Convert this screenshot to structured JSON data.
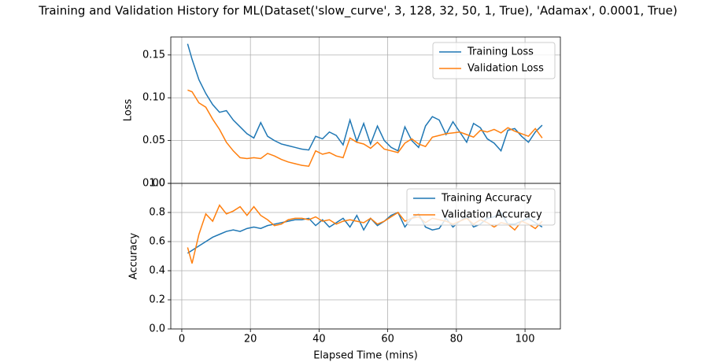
{
  "chart_data": [
    {
      "type": "line",
      "title": "Training and Validation History for ML(Dataset('slow_curve', 3, 128, 32, 50, 1, True), 'Adamax', 0.0001, True)",
      "ylabel": "Loss",
      "x": [
        1.7,
        3,
        5,
        7,
        9,
        11,
        13,
        15,
        17,
        19,
        21,
        23,
        25,
        27,
        29,
        31,
        33,
        35,
        37,
        39,
        41,
        43,
        45,
        47,
        49,
        51,
        53,
        55,
        57,
        59,
        61,
        63,
        65,
        67,
        69,
        71,
        73,
        75,
        77,
        79,
        81,
        83,
        85,
        87,
        89,
        91,
        93,
        95,
        97,
        99,
        101,
        103,
        105
      ],
      "series": [
        {
          "name": "Training Loss",
          "color": "#1f77b4",
          "values": [
            0.163,
            0.145,
            0.121,
            0.105,
            0.092,
            0.083,
            0.085,
            0.074,
            0.066,
            0.058,
            0.053,
            0.071,
            0.055,
            0.05,
            0.046,
            0.044,
            0.042,
            0.04,
            0.039,
            0.055,
            0.052,
            0.06,
            0.056,
            0.045,
            0.074,
            0.049,
            0.07,
            0.046,
            0.067,
            0.05,
            0.042,
            0.038,
            0.066,
            0.05,
            0.042,
            0.067,
            0.078,
            0.074,
            0.057,
            0.072,
            0.06,
            0.048,
            0.07,
            0.065,
            0.052,
            0.047,
            0.038,
            0.062,
            0.064,
            0.055,
            0.048,
            0.06,
            0.068
          ]
        },
        {
          "name": "Validation Loss",
          "color": "#ff7f0e",
          "values": [
            0.109,
            0.107,
            0.094,
            0.089,
            0.075,
            0.063,
            0.048,
            0.038,
            0.03,
            0.029,
            0.03,
            0.029,
            0.035,
            0.032,
            0.028,
            0.025,
            0.023,
            0.021,
            0.02,
            0.038,
            0.034,
            0.036,
            0.032,
            0.03,
            0.053,
            0.048,
            0.046,
            0.041,
            0.048,
            0.04,
            0.038,
            0.036,
            0.047,
            0.052,
            0.046,
            0.043,
            0.054,
            0.056,
            0.058,
            0.059,
            0.06,
            0.057,
            0.054,
            0.062,
            0.06,
            0.063,
            0.059,
            0.065,
            0.061,
            0.058,
            0.055,
            0.064,
            0.053
          ]
        }
      ],
      "xlim": [
        -3.2,
        110.3
      ],
      "xticks": [
        0,
        20,
        40,
        60,
        80,
        100
      ],
      "ylim": [
        0,
        0.171
      ],
      "yticks": [
        {
          "value": 0,
          "label": "0.00"
        },
        {
          "value": 0.05,
          "label": "0.05"
        },
        {
          "value": 0.1,
          "label": "0.10"
        },
        {
          "value": 0.15,
          "label": "0.15"
        }
      ],
      "grid": true,
      "legend": "upper right"
    },
    {
      "type": "line",
      "xlabel": "Elapsed Time (mins)",
      "ylabel": "Accuracy",
      "x": [
        1.7,
        3,
        5,
        7,
        9,
        11,
        13,
        15,
        17,
        19,
        21,
        23,
        25,
        27,
        29,
        31,
        33,
        35,
        37,
        39,
        41,
        43,
        45,
        47,
        49,
        51,
        53,
        55,
        57,
        59,
        61,
        63,
        65,
        67,
        69,
        71,
        73,
        75,
        77,
        79,
        81,
        83,
        85,
        87,
        89,
        91,
        93,
        95,
        97,
        99,
        101,
        103,
        105
      ],
      "series": [
        {
          "name": "Training Accuracy",
          "color": "#1f77b4",
          "values": [
            0.52,
            0.54,
            0.57,
            0.6,
            0.63,
            0.65,
            0.67,
            0.68,
            0.67,
            0.69,
            0.7,
            0.69,
            0.71,
            0.72,
            0.73,
            0.74,
            0.75,
            0.75,
            0.76,
            0.71,
            0.75,
            0.7,
            0.73,
            0.76,
            0.7,
            0.78,
            0.68,
            0.76,
            0.71,
            0.74,
            0.78,
            0.8,
            0.7,
            0.76,
            0.79,
            0.7,
            0.68,
            0.69,
            0.76,
            0.7,
            0.74,
            0.77,
            0.7,
            0.72,
            0.76,
            0.77,
            0.8,
            0.72,
            0.72,
            0.74,
            0.76,
            0.73,
            0.7
          ]
        },
        {
          "name": "Validation Accuracy",
          "color": "#ff7f0e",
          "values": [
            0.56,
            0.45,
            0.65,
            0.79,
            0.74,
            0.85,
            0.79,
            0.81,
            0.84,
            0.78,
            0.84,
            0.78,
            0.75,
            0.71,
            0.72,
            0.75,
            0.76,
            0.76,
            0.75,
            0.77,
            0.74,
            0.75,
            0.72,
            0.74,
            0.75,
            0.74,
            0.73,
            0.76,
            0.72,
            0.74,
            0.77,
            0.8,
            0.74,
            0.76,
            0.77,
            0.73,
            0.76,
            0.75,
            0.74,
            0.72,
            0.74,
            0.76,
            0.72,
            0.75,
            0.73,
            0.7,
            0.73,
            0.72,
            0.68,
            0.74,
            0.72,
            0.69,
            0.74
          ]
        }
      ],
      "xlim": [
        -3.2,
        110.3
      ],
      "xticks": [
        0,
        20,
        40,
        60,
        80,
        100
      ],
      "ylim": [
        0,
        1.0
      ],
      "yticks": [
        {
          "value": 0,
          "label": "0.0"
        },
        0.2,
        0.4,
        0.6,
        0.8,
        {
          "value": 1.0,
          "label": "1.0"
        }
      ],
      "grid": true,
      "legend": "upper right"
    }
  ]
}
